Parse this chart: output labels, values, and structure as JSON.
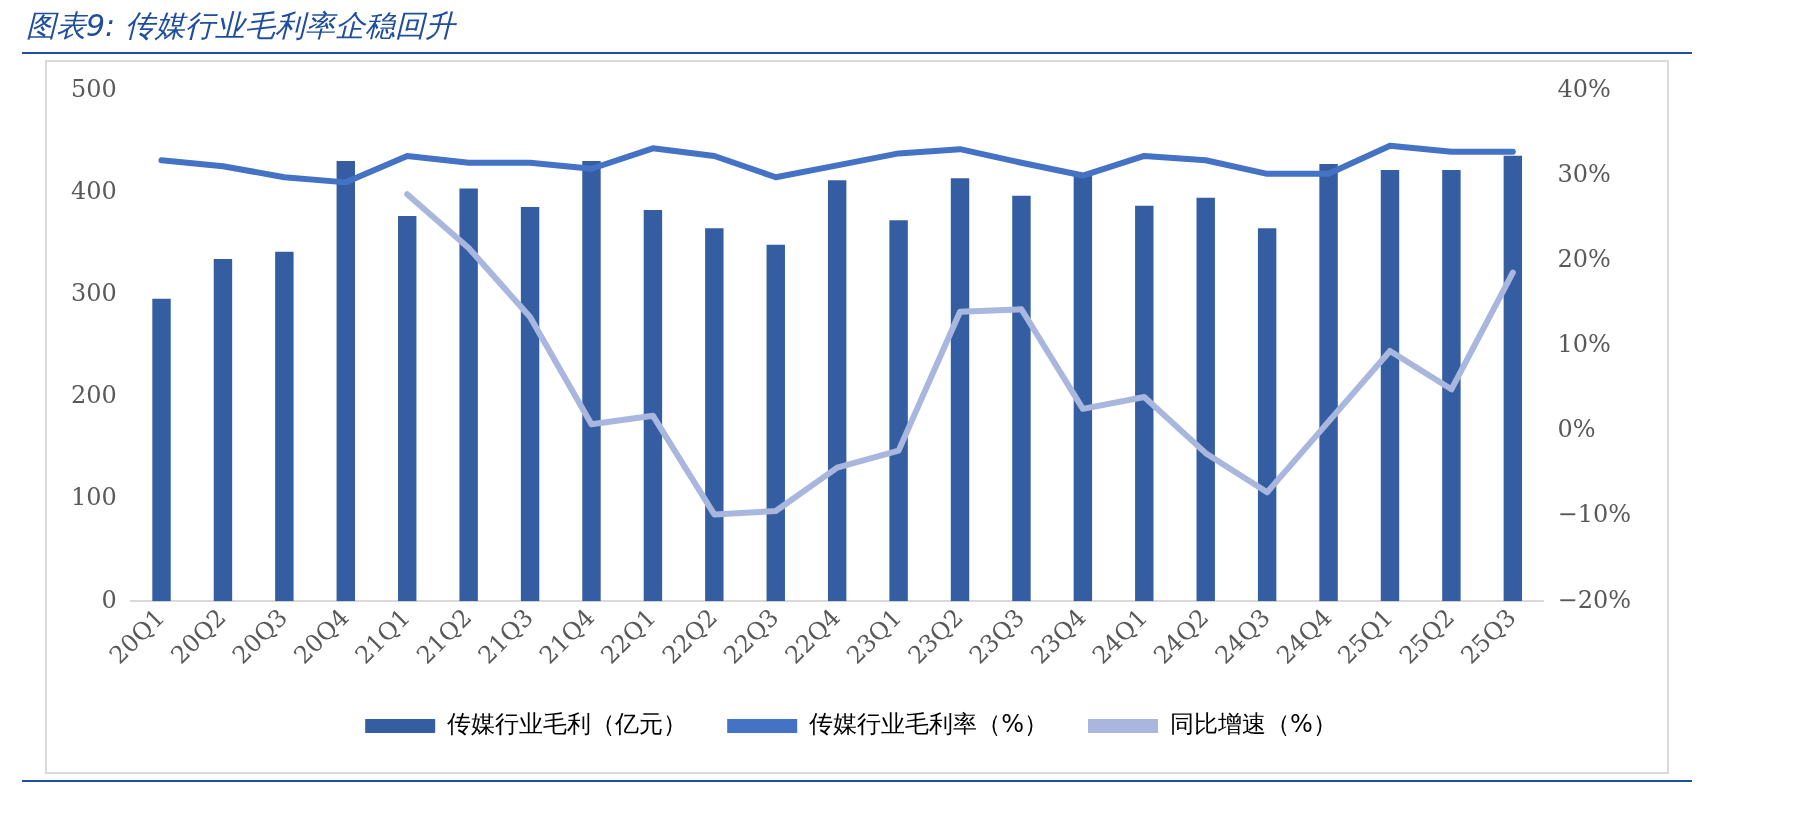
{
  "chart_data": {
    "type": "bar",
    "title": "图表9:  传媒行业毛利率企稳回升",
    "categories": [
      "20Q1",
      "20Q2",
      "20Q3",
      "20Q4",
      "21Q1",
      "21Q2",
      "21Q3",
      "21Q4",
      "22Q1",
      "22Q2",
      "22Q3",
      "22Q4",
      "23Q1",
      "23Q2",
      "23Q3",
      "23Q4",
      "24Q1",
      "24Q2",
      "24Q3",
      "24Q4",
      "25Q1",
      "25Q2",
      "25Q3"
    ],
    "series": [
      {
        "name": "传媒行业毛利（亿元）",
        "color": "#355ea2",
        "values": [
          296,
          335,
          342,
          431,
          377,
          404,
          386,
          431,
          383,
          365,
          349,
          412,
          373,
          414,
          397,
          418,
          387,
          395,
          365,
          428,
          422,
          422,
          436
        ]
      },
      {
        "name": "传媒行业毛利率（%）",
        "type": "line",
        "axis": "y2",
        "color": "#4472c4",
        "values": [
          31.8,
          31.1,
          29.8,
          29.2,
          32.3,
          31.5,
          31.5,
          30.8,
          33.2,
          32.3,
          29.8,
          31.2,
          32.6,
          33.1,
          31.5,
          30.0,
          32.3,
          31.8,
          30.2,
          30.2,
          33.5,
          32.8,
          32.8
        ]
      },
      {
        "name": "同比增速（%）",
        "type": "line",
        "axis": "y2",
        "color": "#a9b6dd",
        "values": [
          null,
          null,
          null,
          null,
          27.8,
          21.5,
          13.4,
          0.8,
          1.8,
          -9.8,
          -9.4,
          -4.3,
          -2.3,
          14.0,
          14.3,
          2.6,
          4.0,
          -2.6,
          -7.2,
          1.1,
          9.4,
          4.9,
          18.6
        ]
      }
    ],
    "ylim": [
      0,
      500
    ],
    "yticks": [
      0,
      100,
      200,
      300,
      400,
      500
    ],
    "y2lim": [
      -20,
      40
    ],
    "y2ticks": [
      {
        "value": -20,
        "label": "−20%"
      },
      {
        "value": -10,
        "label": "−10%"
      },
      {
        "value": 0,
        "label": "0%"
      },
      {
        "value": 10,
        "label": "10%"
      },
      {
        "value": 20,
        "label": "20%"
      },
      {
        "value": 30,
        "label": "30%"
      },
      {
        "value": 40,
        "label": "40%"
      }
    ],
    "grid": false,
    "legend": "bottom",
    "marker": "none"
  }
}
